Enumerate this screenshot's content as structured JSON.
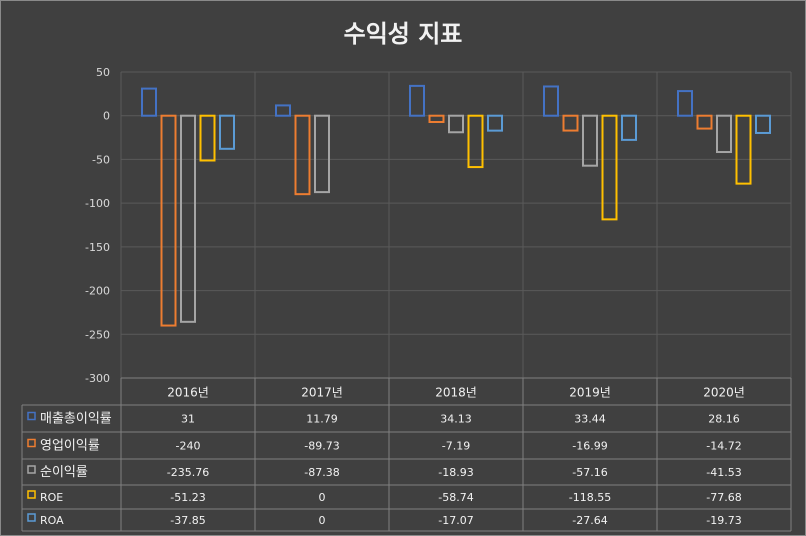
{
  "chart_data": {
    "type": "bar",
    "title": "수익성 지표",
    "categories": [
      "2016년",
      "2017년",
      "2018년",
      "2019년",
      "2020년"
    ],
    "ylim": [
      -300,
      50
    ],
    "yticks": [
      "50",
      "0",
      "-50",
      "-100",
      "-150",
      "-200",
      "-250",
      "-300"
    ],
    "grid": true,
    "legend": "data-table",
    "series": [
      {
        "name": "매출총이익률",
        "color": "#4472c4",
        "values": [
          31,
          11.79,
          34.13,
          33.44,
          28.16
        ],
        "labels": [
          "31",
          "11.79",
          "34.13",
          "33.44",
          "28.16"
        ]
      },
      {
        "name": "영업이익률",
        "color": "#ed7d31",
        "values": [
          -240,
          -89.73,
          -7.19,
          -16.99,
          -14.72
        ],
        "labels": [
          "-240",
          "-89.73",
          "-7.19",
          "-16.99",
          "-14.72"
        ]
      },
      {
        "name": "순이익률",
        "color": "#a5a5a5",
        "values": [
          -235.76,
          -87.38,
          -18.93,
          -57.16,
          -41.53
        ],
        "labels": [
          "-235.76",
          "-87.38",
          "-18.93",
          "-57.16",
          "-41.53"
        ]
      },
      {
        "name": "ROE",
        "color": "#ffc000",
        "values": [
          -51.23,
          0,
          -58.74,
          -118.55,
          -77.68
        ],
        "labels": [
          "-51.23",
          "0",
          "-58.74",
          "-118.55",
          "-77.68"
        ]
      },
      {
        "name": "ROA",
        "color": "#5b9bd5",
        "values": [
          -37.85,
          0,
          -17.07,
          -27.64,
          -19.73
        ],
        "labels": [
          "-37.85",
          "0",
          "-17.07",
          "-27.64",
          "-19.73"
        ]
      }
    ]
  }
}
